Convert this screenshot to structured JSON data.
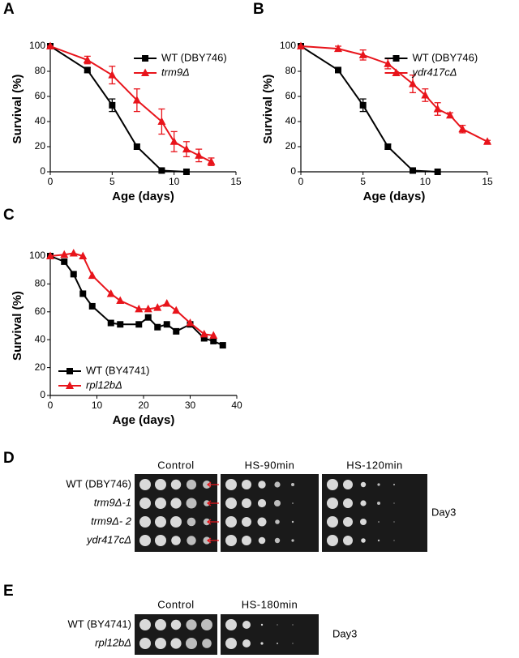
{
  "chart_data": [
    {
      "type": "line",
      "panel": "A",
      "xlabel": "Age (days)",
      "ylabel": "Survival (%)",
      "xlim": [
        0,
        15
      ],
      "xticks": [
        0,
        5,
        10,
        15
      ],
      "ylim": [
        0,
        100
      ],
      "yticks": [
        0,
        20,
        40,
        60,
        80,
        100
      ],
      "legend": "upper right",
      "series": [
        {
          "name": "WT (DBY746)",
          "color": "#000000",
          "marker": "square",
          "x": [
            0,
            3,
            5,
            7,
            9,
            11
          ],
          "values": [
            100,
            81,
            53,
            20,
            1,
            0
          ],
          "errors": [
            0,
            2,
            5,
            2,
            1,
            0
          ]
        },
        {
          "name": "trm9Δ",
          "color": "#e8141b",
          "marker": "triangle",
          "x": [
            0,
            3,
            5,
            7,
            9,
            10,
            11,
            12,
            13
          ],
          "values": [
            100,
            89,
            77,
            57,
            40,
            24,
            18,
            13,
            8
          ],
          "errors": [
            0,
            3,
            7,
            9,
            10,
            8,
            6,
            5,
            3
          ]
        }
      ]
    },
    {
      "type": "line",
      "panel": "B",
      "xlabel": "Age (days)",
      "ylabel": "Survival (%)",
      "xlim": [
        0,
        15
      ],
      "xticks": [
        0,
        5,
        10,
        15
      ],
      "ylim": [
        0,
        100
      ],
      "yticks": [
        0,
        20,
        40,
        60,
        80,
        100
      ],
      "legend": "upper right",
      "series": [
        {
          "name": "WT (DBY746)",
          "color": "#000000",
          "marker": "square",
          "x": [
            0,
            3,
            5,
            7,
            9,
            11
          ],
          "values": [
            100,
            81,
            53,
            20,
            1,
            0
          ],
          "errors": [
            0,
            2,
            5,
            2,
            1,
            0
          ]
        },
        {
          "name": "ydr417cΔ",
          "color": "#e8141b",
          "marker": "triangle",
          "x": [
            0,
            3,
            5,
            7,
            9,
            10,
            11,
            12,
            13,
            15
          ],
          "values": [
            100,
            98,
            93,
            86,
            70,
            61,
            50,
            45,
            34,
            24
          ],
          "errors": [
            0,
            2,
            4,
            4,
            7,
            5,
            5,
            2,
            3,
            1
          ]
        }
      ]
    },
    {
      "type": "line",
      "panel": "C",
      "xlabel": "Age (days)",
      "ylabel": "Survival (%)",
      "xlim": [
        0,
        40
      ],
      "xticks": [
        0,
        10,
        20,
        30,
        40
      ],
      "ylim": [
        0,
        100
      ],
      "yticks": [
        0,
        20,
        40,
        60,
        80,
        100
      ],
      "legend": "lower left",
      "series": [
        {
          "name": "WT (BY4741)",
          "color": "#000000",
          "marker": "square",
          "x": [
            0,
            3,
            5,
            7,
            9,
            13,
            15,
            19,
            21,
            23,
            25,
            27,
            30,
            33,
            35,
            37
          ],
          "values": [
            100,
            96,
            87,
            73,
            64,
            52,
            51,
            51,
            56,
            49,
            51,
            46,
            51,
            41,
            39,
            36
          ]
        },
        {
          "name": "rpl12bΔ",
          "color": "#e8141b",
          "marker": "triangle",
          "x": [
            0,
            3,
            5,
            7,
            9,
            13,
            15,
            19,
            21,
            23,
            25,
            27,
            30,
            33,
            35
          ],
          "values": [
            100,
            101,
            102,
            100,
            86,
            73,
            68,
            62,
            62,
            63,
            66,
            61,
            52,
            44,
            43
          ]
        }
      ]
    }
  ],
  "spot_assays": [
    {
      "panel": "D",
      "conditions": [
        "Control",
        "HS-90min",
        "HS-120min"
      ],
      "strains": [
        "WT (DBY746)",
        "trm9Δ-1",
        "trm9Δ- 2",
        "ydr417cΔ"
      ],
      "day": "Day3"
    },
    {
      "panel": "E",
      "conditions": [
        "Control",
        "HS-180min"
      ],
      "strains": [
        "WT (BY4741)",
        "rpl12bΔ"
      ],
      "day": "Day3"
    }
  ]
}
